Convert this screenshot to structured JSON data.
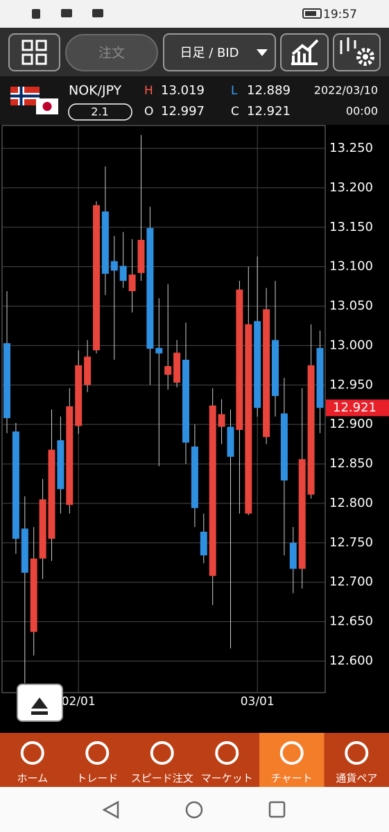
{
  "status_bar": {
    "time": "19:57"
  },
  "toolbar": {
    "order": "注文",
    "period": "日足 / BID"
  },
  "header": {
    "pair": "NOK/JPY",
    "spread": 2.1,
    "high_label": "H",
    "high": 13.019,
    "low_label": "L",
    "low": 12.889,
    "open_label": "O",
    "open": 12.997,
    "close_label": "C",
    "close": 12.921,
    "date": "2022/03/10",
    "time": "00:00"
  },
  "chart_data": {
    "type": "candlestick",
    "categories": [
      null,
      null,
      null,
      null,
      null,
      null,
      null,
      null,
      "02/01",
      null,
      null,
      null,
      null,
      null,
      null,
      null,
      null,
      null,
      null,
      null,
      null,
      null,
      null,
      null,
      null,
      null,
      null,
      null,
      "03/01",
      null,
      null,
      null,
      null,
      null,
      null,
      null
    ],
    "open": [
      13.003,
      12.891,
      12.768,
      12.637,
      12.73,
      12.755,
      12.88,
      12.798,
      12.898,
      12.95,
      12.994,
      13.17,
      13.107,
      13.101,
      13.069,
      13.092,
      13.149,
      12.997,
      12.963,
      12.953,
      12.982,
      12.872,
      12.764,
      12.708,
      12.897,
      12.897,
      12.893,
      12.787,
      13.031,
      12.884,
      13.007,
      12.914,
      12.75,
      12.717,
      12.811,
      12.997
    ],
    "high": [
      13.069,
      12.902,
      12.809,
      12.77,
      12.831,
      12.919,
      12.91,
      12.946,
      12.994,
      13.007,
      13.183,
      13.227,
      13.139,
      13.144,
      13.135,
      13.267,
      13.176,
      13.06,
      13.078,
      13.007,
      13.029,
      12.9,
      12.787,
      12.946,
      12.932,
      12.919,
      13.082,
      13.1,
      13.113,
      13.073,
      13.082,
      12.959,
      12.77,
      12.946,
      13.027,
      13.019
    ],
    "low": [
      12.889,
      12.736,
      12.572,
      12.607,
      12.704,
      12.727,
      12.787,
      12.787,
      12.888,
      12.941,
      12.99,
      13.064,
      12.982,
      13.073,
      13.042,
      13.082,
      12.95,
      12.847,
      12.944,
      12.947,
      12.85,
      12.77,
      12.724,
      12.671,
      12.875,
      12.616,
      12.787,
      12.785,
      12.91,
      12.875,
      12.91,
      12.734,
      12.686,
      12.692,
      12.806,
      12.889
    ],
    "close": [
      12.908,
      12.755,
      12.712,
      12.73,
      12.805,
      12.868,
      12.818,
      12.923,
      12.975,
      12.986,
      13.178,
      13.091,
      13.095,
      13.082,
      13.09,
      13.134,
      12.996,
      12.99,
      12.974,
      12.991,
      12.877,
      12.794,
      12.734,
      12.924,
      12.913,
      12.859,
      13.071,
      13.027,
      12.921,
      13.046,
      12.936,
      12.829,
      12.717,
      12.856,
      12.975,
      12.921
    ],
    "up_color": "#e8453c",
    "down_color": "#2f8fe0",
    "ylim": [
      12.56,
      13.279
    ],
    "yticks": [
      {
        "value": 12.6,
        "label": "12.600"
      },
      {
        "value": 12.65,
        "label": "12.650"
      },
      {
        "value": 12.7,
        "label": "12.700"
      },
      {
        "value": 12.75,
        "label": "12.750"
      },
      {
        "value": 12.8,
        "label": "12.800"
      },
      {
        "value": 12.85,
        "label": "12.850"
      },
      {
        "value": 12.9,
        "label": "12.900"
      },
      {
        "value": 12.95,
        "label": "12.950"
      },
      {
        "value": 13.0,
        "label": "13.000"
      },
      {
        "value": 13.05,
        "label": "13.050"
      },
      {
        "value": 13.1,
        "label": "13.100"
      },
      {
        "value": 13.15,
        "label": "13.150"
      },
      {
        "value": 13.2,
        "label": "13.200"
      },
      {
        "value": 13.25,
        "label": "13.250"
      }
    ],
    "current_price": 12.921,
    "grid": true
  },
  "nav": [
    "ホーム",
    "トレード",
    "スピード注文",
    "マーケット",
    "チャート",
    "通貨ペア"
  ]
}
